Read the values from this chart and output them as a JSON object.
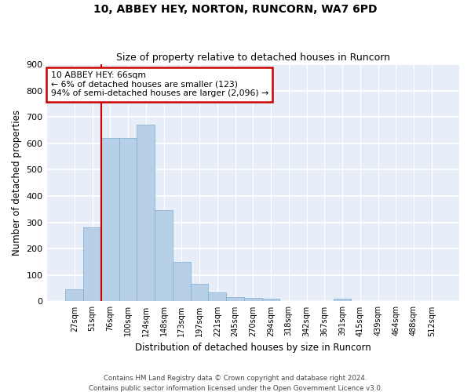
{
  "title": "10, ABBEY HEY, NORTON, RUNCORN, WA7 6PD",
  "subtitle": "Size of property relative to detached houses in Runcorn",
  "xlabel": "Distribution of detached houses by size in Runcorn",
  "ylabel": "Number of detached properties",
  "bar_color": "#b8cfe8",
  "bar_edge_color": "#7aadd4",
  "background_color": "#e8eef8",
  "categories": [
    "27sqm",
    "51sqm",
    "76sqm",
    "100sqm",
    "124sqm",
    "148sqm",
    "173sqm",
    "197sqm",
    "221sqm",
    "245sqm",
    "270sqm",
    "294sqm",
    "318sqm",
    "342sqm",
    "367sqm",
    "391sqm",
    "415sqm",
    "439sqm",
    "464sqm",
    "488sqm",
    "512sqm"
  ],
  "values": [
    46,
    280,
    620,
    620,
    670,
    347,
    150,
    68,
    33,
    17,
    12,
    10,
    0,
    0,
    0,
    10,
    0,
    0,
    0,
    0,
    0
  ],
  "ylim": [
    0,
    900
  ],
  "yticks": [
    0,
    100,
    200,
    300,
    400,
    500,
    600,
    700,
    800,
    900
  ],
  "annotation_text": "10 ABBEY HEY: 66sqm\n← 6% of detached houses are smaller (123)\n94% of semi-detached houses are larger (2,096) →",
  "annotation_box_color": "#ffffff",
  "annotation_border_color": "#cc0000",
  "footer_line1": "Contains HM Land Registry data © Crown copyright and database right 2024.",
  "footer_line2": "Contains public sector information licensed under the Open Government Licence v3.0.",
  "vline_color": "#cc0000",
  "vline_x": 1.5
}
